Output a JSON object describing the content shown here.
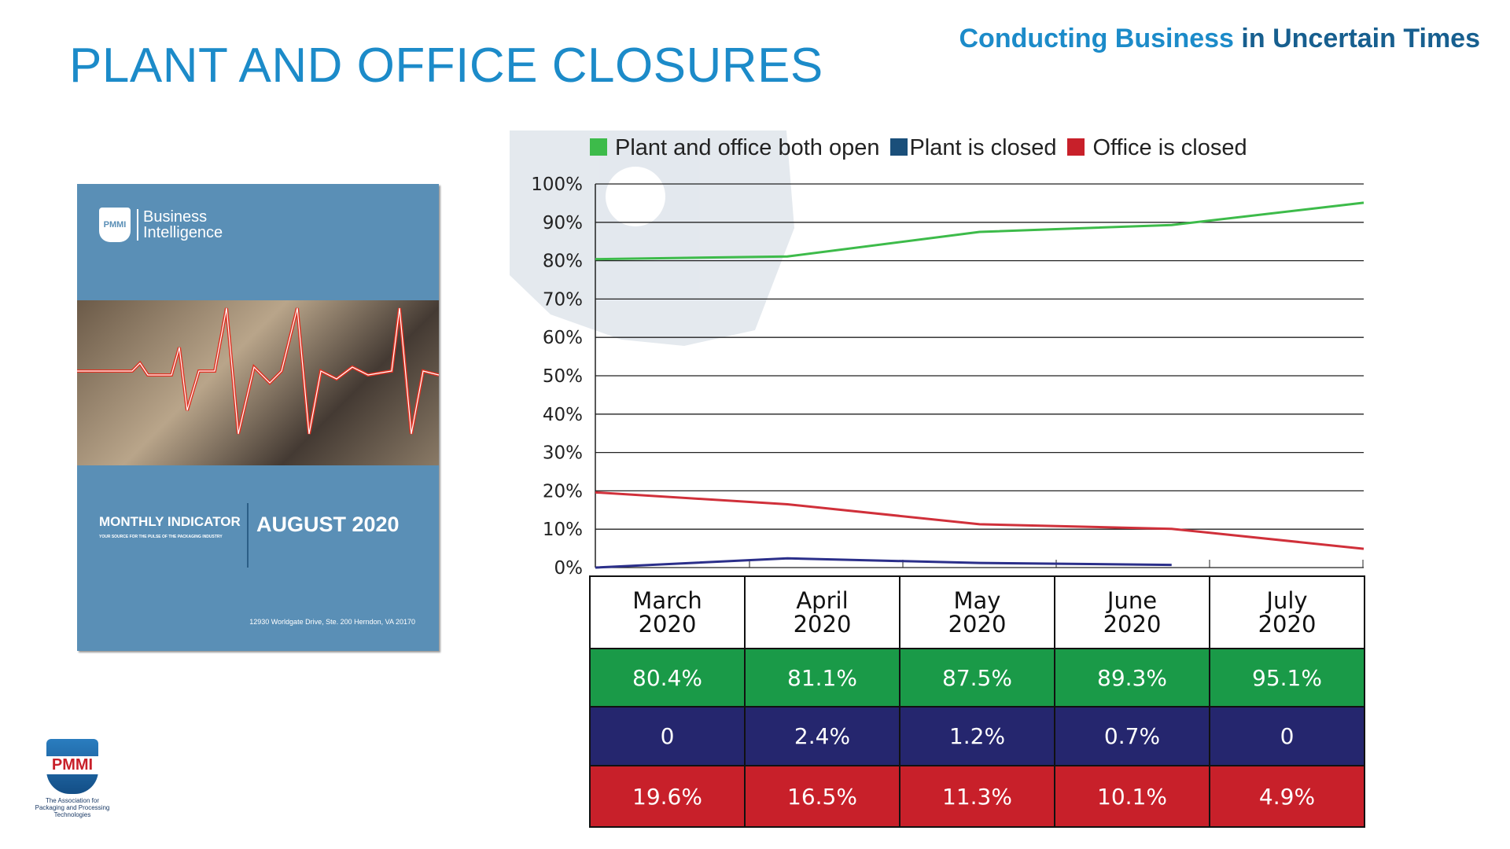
{
  "title": "PLANT AND OFFICE CLOSURES",
  "subtitle": {
    "part1": "Conducting Business",
    "part2": "in Uncertain Times"
  },
  "cover": {
    "logo_text": "PMMI",
    "brand": "Business Intelligence",
    "brand_line1": "Business",
    "brand_line2": "Intelligence",
    "label": "MONTHLY INDICATOR",
    "tagline": "YOUR SOURCE FOR THE PULSE OF THE PACKAGING INDUSTRY",
    "issue": "AUGUST 2020",
    "address": "12930 Worldgate Drive, Ste. 200  Herndon, VA  20170"
  },
  "logo": {
    "text": "PMMI",
    "tagline": "The Association for Packaging and Processing Technologies"
  },
  "chart_data": {
    "type": "line",
    "categories": [
      "March 2020",
      "April 2020",
      "May 2020",
      "June 2020",
      "July 2020"
    ],
    "category_lines": [
      [
        "March",
        "2020"
      ],
      [
        "April",
        "2020"
      ],
      [
        "May",
        "2020"
      ],
      [
        "June",
        "2020"
      ],
      [
        "July",
        "2020"
      ]
    ],
    "series": [
      {
        "name": "Plant and office both open",
        "color": "#3dbb4a",
        "table_color": "#1a9a48",
        "values": [
          80.4,
          81.1,
          87.5,
          89.3,
          95.1
        ],
        "labels": [
          "80.4%",
          "81.1%",
          "87.5%",
          "89.3%",
          "95.1%"
        ]
      },
      {
        "name": "Plant is closed",
        "color": "#2b2f8a",
        "table_color": "#25266e",
        "values": [
          0,
          2.4,
          1.2,
          0.7,
          null
        ],
        "labels": [
          "0",
          "2.4%",
          "1.2%",
          "0.7%",
          "0"
        ]
      },
      {
        "name": "Office is closed",
        "color": "#d0303a",
        "table_color": "#c8202a",
        "values": [
          19.6,
          16.5,
          11.3,
          10.1,
          4.9
        ],
        "labels": [
          "19.6%",
          "16.5%",
          "11.3%",
          "10.1%",
          "4.9%"
        ]
      }
    ],
    "legend_colors": [
      "#3dbb4a",
      "#1a4f7a",
      "#c8202a"
    ],
    "yticks": [
      "0%",
      "10%",
      "20%",
      "30%",
      "40%",
      "50%",
      "60%",
      "70%",
      "80%",
      "90%",
      "100%"
    ],
    "ylim": [
      0,
      100
    ],
    "grid": true,
    "legend": "top"
  }
}
